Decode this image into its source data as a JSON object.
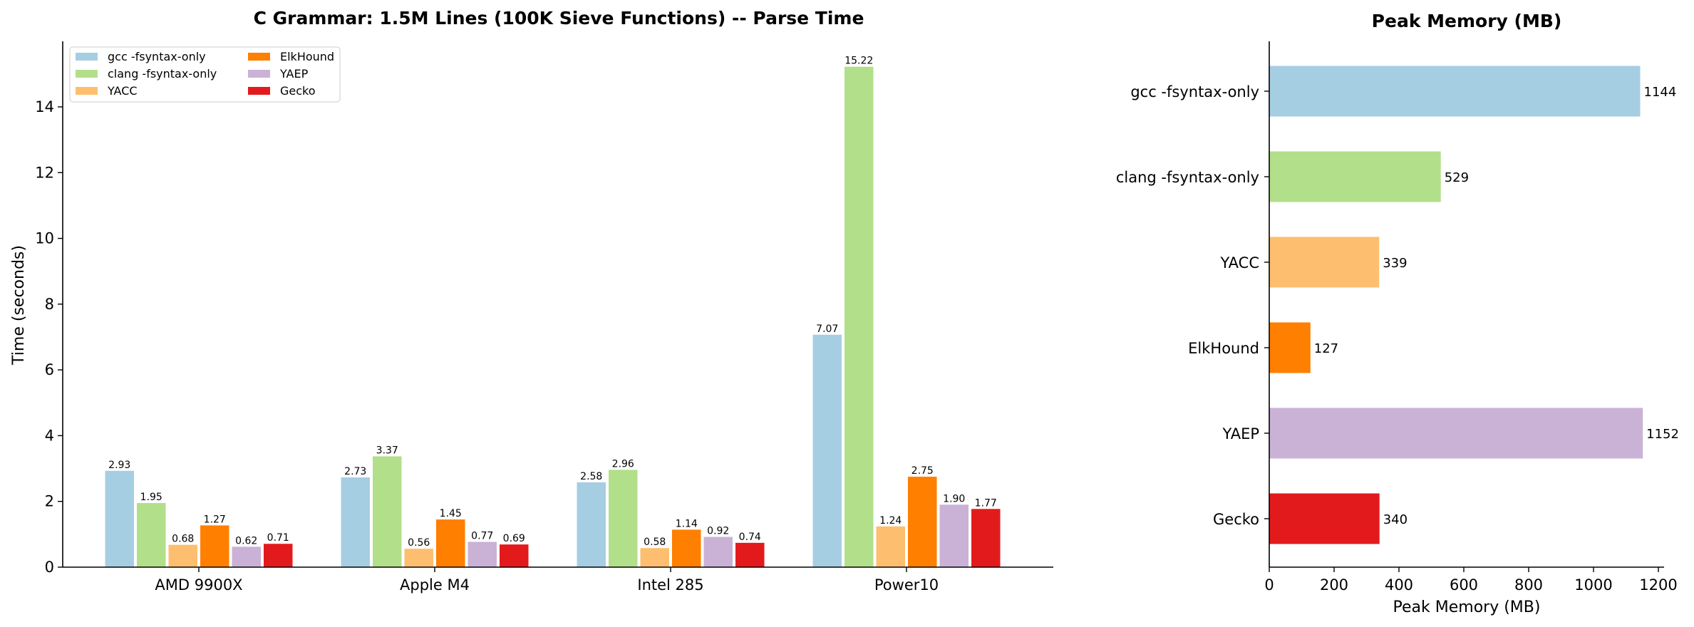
{
  "chart_data": [
    {
      "type": "bar",
      "title": "C Grammar: 1.5M Lines (100K Sieve Functions) -- Parse Time",
      "xlabel": "",
      "ylabel": "Time (seconds)",
      "ylim": [
        0,
        16
      ],
      "yticks": [
        "0",
        "2",
        "4",
        "6",
        "8",
        "10",
        "12",
        "14"
      ],
      "grid": false,
      "legend_position": "top-left",
      "categories": [
        "AMD 9900X",
        "Apple M4",
        "Intel 285",
        "Power10"
      ],
      "series": [
        {
          "name": "gcc -fsyntax-only",
          "color": "#a6cee3",
          "values": [
            2.93,
            2.73,
            2.58,
            7.07
          ],
          "labels": [
            "2.93",
            "2.73",
            "2.58",
            "7.07"
          ]
        },
        {
          "name": "clang -fsyntax-only",
          "color": "#b2df8a",
          "values": [
            1.95,
            3.37,
            2.96,
            15.22
          ],
          "labels": [
            "1.95",
            "3.37",
            "2.96",
            "15.22"
          ]
        },
        {
          "name": "YACC",
          "color": "#fdbf6f",
          "values": [
            0.68,
            0.56,
            0.58,
            1.24
          ],
          "labels": [
            "0.68",
            "0.56",
            "0.58",
            "1.24"
          ]
        },
        {
          "name": "ElkHound",
          "color": "#ff7f00",
          "values": [
            1.27,
            1.45,
            1.14,
            2.75
          ],
          "labels": [
            "1.27",
            "1.45",
            "1.14",
            "2.75"
          ]
        },
        {
          "name": "YAEP",
          "color": "#cab2d6",
          "values": [
            0.62,
            0.77,
            0.92,
            1.9
          ],
          "labels": [
            "0.62",
            "0.77",
            "0.92",
            "1.90"
          ]
        },
        {
          "name": "Gecko",
          "color": "#e31a1c",
          "values": [
            0.71,
            0.69,
            0.74,
            1.77
          ],
          "labels": [
            "0.71",
            "0.69",
            "0.74",
            "1.77"
          ]
        }
      ]
    },
    {
      "type": "bar",
      "orientation": "horizontal",
      "title": "Peak Memory (MB)",
      "xlabel": "Peak Memory (MB)",
      "ylabel": "",
      "xlim": [
        0,
        1210
      ],
      "xticks": [
        "0",
        "200",
        "400",
        "600",
        "800",
        "1000",
        "1200"
      ],
      "grid": false,
      "categories": [
        "gcc -fsyntax-only",
        "clang -fsyntax-only",
        "YACC",
        "ElkHound",
        "YAEP",
        "Gecko"
      ],
      "values": [
        1144,
        529,
        339,
        127,
        1152,
        340
      ],
      "labels": [
        "1144",
        "529",
        "339",
        "127",
        "1152",
        "340"
      ],
      "colors": [
        "#a6cee3",
        "#b2df8a",
        "#fdbf6f",
        "#ff7f00",
        "#cab2d6",
        "#e31a1c"
      ]
    }
  ]
}
